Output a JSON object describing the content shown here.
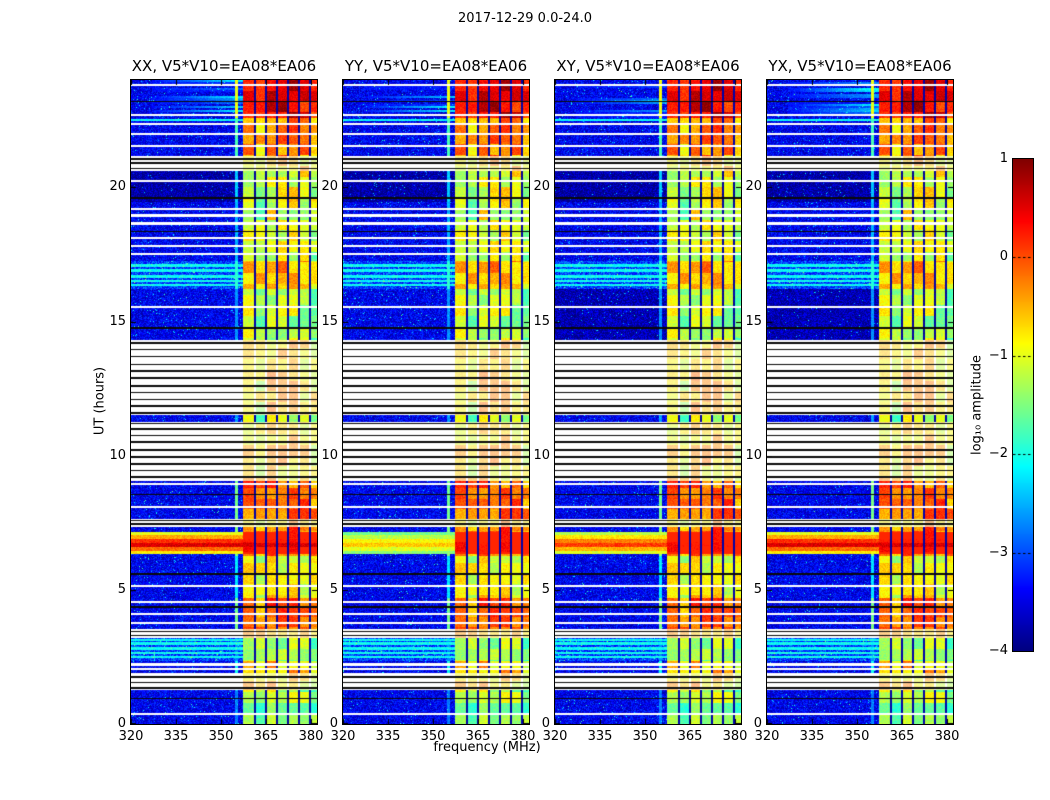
{
  "chart_data": {
    "type": "heatmap",
    "title": "2017-12-29 0.0-24.0",
    "xlabel": "frequency (MHz)",
    "ylabel": "UT (hours)",
    "x_range": [
      320,
      382
    ],
    "y_range": [
      0,
      24
    ],
    "x_ticks": [
      320,
      335,
      350,
      365,
      380
    ],
    "y_ticks": [
      0,
      5,
      10,
      15,
      20
    ],
    "colormap": "jet",
    "colorbar": {
      "label": "log₁₀ amplitude",
      "vmin": -4,
      "vmax": 1,
      "ticks": [
        1,
        0,
        -1,
        -2,
        -3,
        -4
      ]
    },
    "panels": [
      {
        "label": "XX",
        "title": "XX, V5*V10=EA08*EA06",
        "seed": 101,
        "burst_scale": 1.0
      },
      {
        "label": "YY",
        "title": "YY, V5*V10=EA08*EA06",
        "seed": 202,
        "burst_scale": 0.62
      },
      {
        "label": "XY",
        "title": "XY, V5*V10=EA08*EA06",
        "seed": 303,
        "burst_scale": 0.85
      },
      {
        "label": "YX",
        "title": "YX, V5*V10=EA08*EA06",
        "seed": 404,
        "burst_scale": 1.0
      }
    ],
    "band": {
      "f0": 357.5,
      "f1": 382,
      "separators": [
        361.3,
        365.0,
        368.7,
        372.4,
        376.1,
        379.6
      ],
      "sep_width": 0.7,
      "pre_line_freq": 355.2
    },
    "segments": [
      {
        "t0": 0.0,
        "t1": 1.25,
        "bg": "noise",
        "band": -1.55
      },
      {
        "t0": 1.25,
        "t1": 1.9,
        "bg": "white",
        "band": -1.0
      },
      {
        "t0": 1.9,
        "t1": 2.35,
        "bg": "noise",
        "band": -0.85
      },
      {
        "t0": 2.35,
        "t1": 3.2,
        "bg": "bright",
        "band": -1.5
      },
      {
        "t0": 3.2,
        "t1": 3.55,
        "bg": "white",
        "band": -0.75
      },
      {
        "t0": 3.55,
        "t1": 4.7,
        "bg": "noise",
        "band": -0.35
      },
      {
        "t0": 4.7,
        "t1": 6.25,
        "bg": "noise",
        "band": -1.05
      },
      {
        "t0": 6.25,
        "t1": 7.35,
        "bg": "noise",
        "band": -0.3
      },
      {
        "t0": 7.35,
        "t1": 7.65,
        "bg": "white",
        "band": -0.8
      },
      {
        "t0": 7.65,
        "t1": 9.05,
        "bg": "noise",
        "band": -0.35
      },
      {
        "t0": 9.05,
        "t1": 11.25,
        "bg": "white",
        "band": -0.9
      },
      {
        "t0": 11.25,
        "t1": 11.5,
        "bg": "noise",
        "band": -1.4
      },
      {
        "t0": 11.5,
        "t1": 14.3,
        "bg": "white",
        "band": -0.9
      },
      {
        "t0": 14.3,
        "t1": 16.2,
        "bg": "noise",
        "band": -1.45,
        "dark_panels": [
          2,
          3
        ]
      },
      {
        "t0": 16.2,
        "t1": 17.25,
        "bg": "bright",
        "band": -0.75
      },
      {
        "t0": 17.25,
        "t1": 19.45,
        "bg": "noise",
        "band": -1.3
      },
      {
        "t0": 19.45,
        "t1": 20.6,
        "bg": "dark",
        "band": -1.2
      },
      {
        "t0": 20.6,
        "t1": 21.15,
        "bg": "white",
        "band": -0.9
      },
      {
        "t0": 21.15,
        "t1": 22.6,
        "bg": "noise",
        "band": -0.55
      },
      {
        "t0": 22.6,
        "t1": 24.01,
        "bg": "noise",
        "band": 0.25,
        "streaks": true
      }
    ],
    "lines": [
      {
        "t": 0.38,
        "type": "white"
      },
      {
        "t": 0.95,
        "type": "black"
      },
      {
        "t": 1.35,
        "type": "black"
      },
      {
        "t": 1.55,
        "type": "black"
      },
      {
        "t": 1.75,
        "type": "black"
      },
      {
        "t": 2.05,
        "type": "white"
      },
      {
        "t": 2.22,
        "type": "white"
      },
      {
        "t": 2.5,
        "type": "cyan"
      },
      {
        "t": 2.65,
        "type": "cyan"
      },
      {
        "t": 2.82,
        "type": "cyan"
      },
      {
        "t": 3.0,
        "type": "cyan"
      },
      {
        "t": 3.12,
        "type": "cyan"
      },
      {
        "t": 3.3,
        "type": "black"
      },
      {
        "t": 3.45,
        "type": "black"
      },
      {
        "t": 3.75,
        "type": "white"
      },
      {
        "t": 4.1,
        "type": "white"
      },
      {
        "t": 4.35,
        "type": "black"
      },
      {
        "t": 4.55,
        "type": "white"
      },
      {
        "t": 5.15,
        "type": "white"
      },
      {
        "t": 5.6,
        "type": "black"
      },
      {
        "t": 7.45,
        "type": "black"
      },
      {
        "t": 7.58,
        "type": "black"
      },
      {
        "t": 8.1,
        "type": "white"
      },
      {
        "t": 8.55,
        "type": "black"
      },
      {
        "t": 8.95,
        "type": "white"
      },
      {
        "t": 9.2,
        "type": "black"
      },
      {
        "t": 9.45,
        "type": "black"
      },
      {
        "t": 9.7,
        "type": "black"
      },
      {
        "t": 9.95,
        "type": "black"
      },
      {
        "t": 10.2,
        "type": "black"
      },
      {
        "t": 10.5,
        "type": "black"
      },
      {
        "t": 10.75,
        "type": "black"
      },
      {
        "t": 11.0,
        "type": "black"
      },
      {
        "t": 11.2,
        "type": "black"
      },
      {
        "t": 11.6,
        "type": "black"
      },
      {
        "t": 11.85,
        "type": "black"
      },
      {
        "t": 12.1,
        "type": "black"
      },
      {
        "t": 12.35,
        "type": "black"
      },
      {
        "t": 12.6,
        "type": "black"
      },
      {
        "t": 12.9,
        "type": "black"
      },
      {
        "t": 13.15,
        "type": "black"
      },
      {
        "t": 13.4,
        "type": "black"
      },
      {
        "t": 13.7,
        "type": "black"
      },
      {
        "t": 13.95,
        "type": "black"
      },
      {
        "t": 14.2,
        "type": "black"
      },
      {
        "t": 14.75,
        "type": "black"
      },
      {
        "t": 15.55,
        "type": "white"
      },
      {
        "t": 16.35,
        "type": "cyan"
      },
      {
        "t": 16.5,
        "type": "cyan"
      },
      {
        "t": 16.68,
        "type": "cyan"
      },
      {
        "t": 16.9,
        "type": "cyan"
      },
      {
        "t": 17.08,
        "type": "cyan"
      },
      {
        "t": 17.5,
        "type": "white"
      },
      {
        "t": 17.8,
        "type": "white"
      },
      {
        "t": 18.1,
        "type": "white"
      },
      {
        "t": 18.35,
        "type": "black"
      },
      {
        "t": 18.65,
        "type": "white"
      },
      {
        "t": 18.95,
        "type": "white"
      },
      {
        "t": 19.2,
        "type": "white"
      },
      {
        "t": 19.6,
        "type": "black"
      },
      {
        "t": 20.25,
        "type": "white"
      },
      {
        "t": 20.7,
        "type": "black"
      },
      {
        "t": 20.9,
        "type": "black"
      },
      {
        "t": 21.05,
        "type": "black"
      },
      {
        "t": 21.55,
        "type": "white"
      },
      {
        "t": 22.0,
        "type": "white"
      },
      {
        "t": 22.35,
        "type": "white"
      },
      {
        "t": 22.5,
        "type": "cyan"
      },
      {
        "t": 22.68,
        "type": "white"
      },
      {
        "t": 23.2,
        "type": "black"
      },
      {
        "t": 23.8,
        "type": "white"
      }
    ],
    "bursts": [
      {
        "t": 6.38,
        "w": 0.12,
        "level": -0.8
      },
      {
        "t": 6.52,
        "w": 0.12,
        "level": -0.15
      },
      {
        "t": 6.66,
        "w": 0.16,
        "level": 0.55
      },
      {
        "t": 6.82,
        "w": 0.14,
        "level": 0.15
      },
      {
        "t": 6.97,
        "w": 0.12,
        "level": -0.45
      },
      {
        "t": 7.1,
        "w": 0.1,
        "level": -1.0
      }
    ]
  }
}
